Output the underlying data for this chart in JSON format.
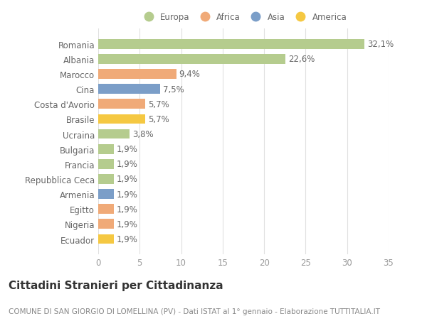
{
  "countries": [
    "Romania",
    "Albania",
    "Marocco",
    "Cina",
    "Costa d'Avorio",
    "Brasile",
    "Ucraina",
    "Bulgaria",
    "Francia",
    "Repubblica Ceca",
    "Armenia",
    "Egitto",
    "Nigeria",
    "Ecuador"
  ],
  "values": [
    32.1,
    22.6,
    9.4,
    7.5,
    5.7,
    5.7,
    3.8,
    1.9,
    1.9,
    1.9,
    1.9,
    1.9,
    1.9,
    1.9
  ],
  "labels": [
    "32,1%",
    "22,6%",
    "9,4%",
    "7,5%",
    "5,7%",
    "5,7%",
    "3,8%",
    "1,9%",
    "1,9%",
    "1,9%",
    "1,9%",
    "1,9%",
    "1,9%",
    "1,9%"
  ],
  "continents": [
    "Europa",
    "Europa",
    "Africa",
    "Asia",
    "Africa",
    "America",
    "Europa",
    "Europa",
    "Europa",
    "Europa",
    "Asia",
    "Africa",
    "Africa",
    "America"
  ],
  "continent_colors": {
    "Europa": "#b5cc8e",
    "Africa": "#f0aa78",
    "Asia": "#7b9ec8",
    "America": "#f5c842"
  },
  "legend_order": [
    "Europa",
    "Africa",
    "Asia",
    "America"
  ],
  "xlim": [
    0,
    35
  ],
  "xticks": [
    0,
    5,
    10,
    15,
    20,
    25,
    30,
    35
  ],
  "title": "Cittadini Stranieri per Cittadinanza",
  "subtitle": "COMUNE DI SAN GIORGIO DI LOMELLINA (PV) - Dati ISTAT al 1° gennaio - Elaborazione TUTTITALIA.IT",
  "background_color": "#ffffff",
  "plot_bg_color": "#ffffff",
  "grid_color": "#e0e0e0",
  "bar_height": 0.65,
  "label_fontsize": 8.5,
  "tick_fontsize": 8.5,
  "title_fontsize": 11,
  "subtitle_fontsize": 7.5
}
